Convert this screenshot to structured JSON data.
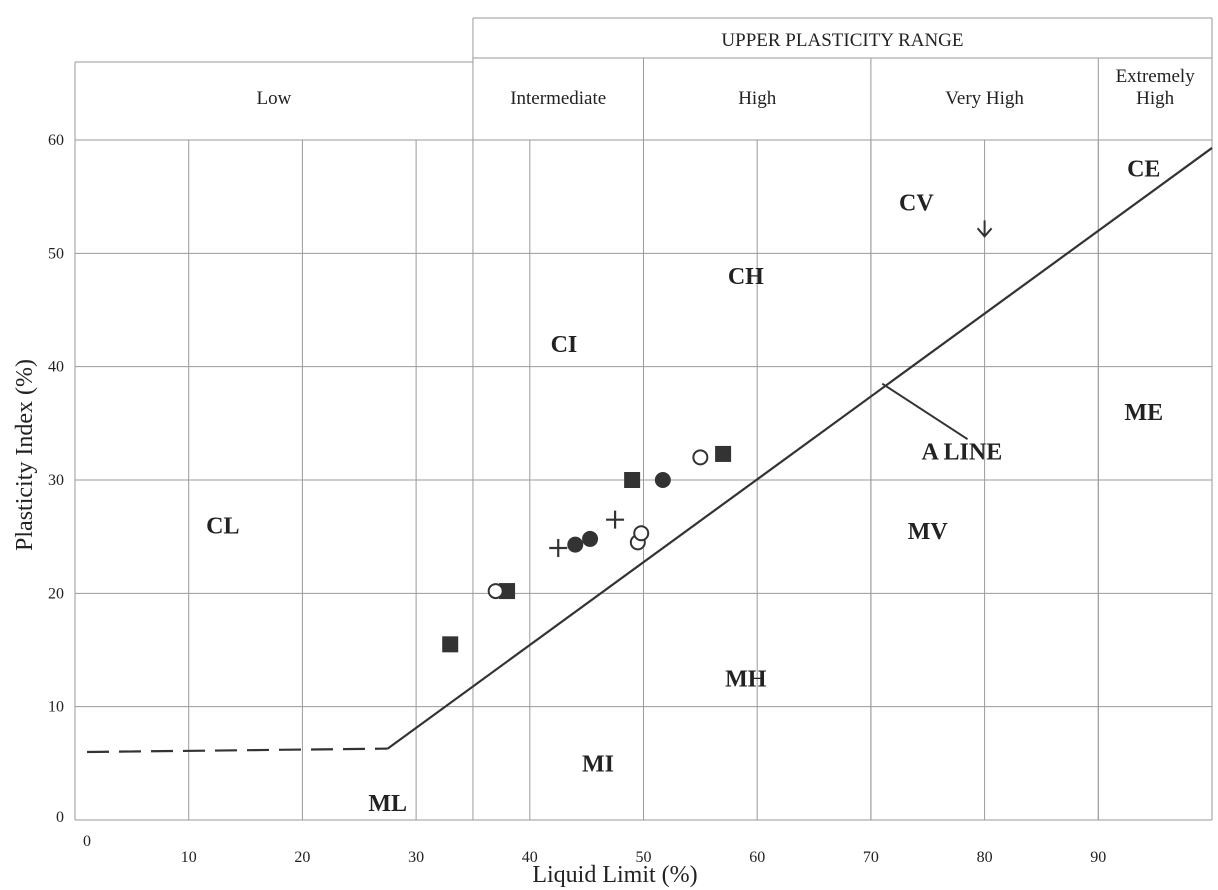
{
  "chart_data": {
    "type": "scatter",
    "title": "",
    "xlabel": "Liquid Limit (%)",
    "ylabel": "Plasticity Index (%)",
    "xlim": [
      0,
      100
    ],
    "ylim": [
      0,
      60
    ],
    "x_ticks": [
      "0",
      "10",
      "20",
      "30",
      "40",
      "50",
      "60",
      "70",
      "80",
      "90"
    ],
    "y_ticks": [
      "0",
      "10",
      "20",
      "30",
      "40",
      "50",
      "60"
    ],
    "grid": true,
    "upper_range_label": "UPPER PLASTICITY RANGE",
    "plasticity_bands": [
      {
        "label": "Low",
        "from": 0,
        "to": 35
      },
      {
        "label": "Intermediate",
        "from": 35,
        "to": 50
      },
      {
        "label": "High",
        "from": 50,
        "to": 70
      },
      {
        "label": "Very High",
        "from": 70,
        "to": 90
      },
      {
        "label": "Extremely High",
        "label_lines": [
          "Extremely",
          "High"
        ],
        "from": 90,
        "to": 100
      }
    ],
    "a_line": {
      "label": "A LINE",
      "solid": [
        [
          27.5,
          6.3
        ],
        [
          100,
          59.3
        ]
      ],
      "dashed": [
        [
          0,
          6
        ],
        [
          27.5,
          6.3
        ]
      ]
    },
    "zone_labels": [
      {
        "text": "CL",
        "x": 13,
        "y": 26
      },
      {
        "text": "ML",
        "x": 27.5,
        "y": 1.5
      },
      {
        "text": "CI",
        "x": 43,
        "y": 42
      },
      {
        "text": "MI",
        "x": 46,
        "y": 5
      },
      {
        "text": "CH",
        "x": 59,
        "y": 48
      },
      {
        "text": "MH",
        "x": 59,
        "y": 12.5
      },
      {
        "text": "CV",
        "x": 74,
        "y": 54.5
      },
      {
        "text": "MV",
        "x": 75,
        "y": 25.5
      },
      {
        "text": "CE",
        "x": 94,
        "y": 57.5
      },
      {
        "text": "ME",
        "x": 94,
        "y": 36
      },
      {
        "text": "A LINE",
        "x": 78,
        "y": 32.5
      }
    ],
    "series": [
      {
        "marker": "filled-square",
        "points": [
          [
            33,
            15.5
          ],
          [
            38,
            20.2
          ],
          [
            49,
            30
          ],
          [
            57,
            32.3
          ]
        ]
      },
      {
        "marker": "filled-circle",
        "points": [
          [
            44,
            24.3
          ],
          [
            45.3,
            24.8
          ],
          [
            51.7,
            30
          ]
        ]
      },
      {
        "marker": "open-circle",
        "points": [
          [
            37,
            20.2
          ],
          [
            49.5,
            24.5
          ],
          [
            49.8,
            25.3
          ],
          [
            55,
            32
          ]
        ]
      },
      {
        "marker": "plus",
        "points": [
          [
            42.5,
            24
          ],
          [
            47.5,
            26.5
          ]
        ]
      }
    ]
  }
}
